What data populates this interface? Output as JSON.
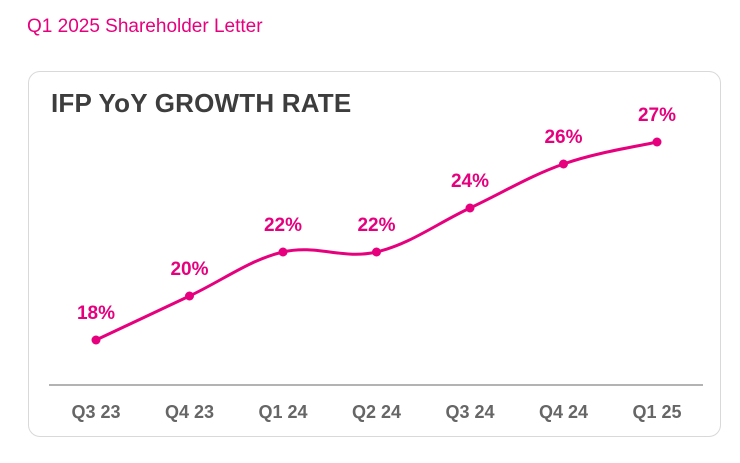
{
  "header": {
    "title": "Q1 2025 Shareholder Letter"
  },
  "colors": {
    "accent": "#e6007e",
    "axis_text": "#666666",
    "title_text": "#3d3d3d"
  },
  "chart_data": {
    "type": "line",
    "title": "IFP YoY GROWTH RATE",
    "categories": [
      "Q3 23",
      "Q4 23",
      "Q1 24",
      "Q2 24",
      "Q3 24",
      "Q4 24",
      "Q1 25"
    ],
    "series": [
      {
        "name": "IFP YoY Growth Rate",
        "values": [
          18,
          20,
          22,
          22,
          24,
          26,
          27
        ],
        "labels": [
          "18%",
          "20%",
          "22%",
          "22%",
          "24%",
          "26%",
          "27%"
        ]
      }
    ],
    "xlabel": "",
    "ylabel": "",
    "unit": "%",
    "grid": false,
    "legend": "none"
  }
}
